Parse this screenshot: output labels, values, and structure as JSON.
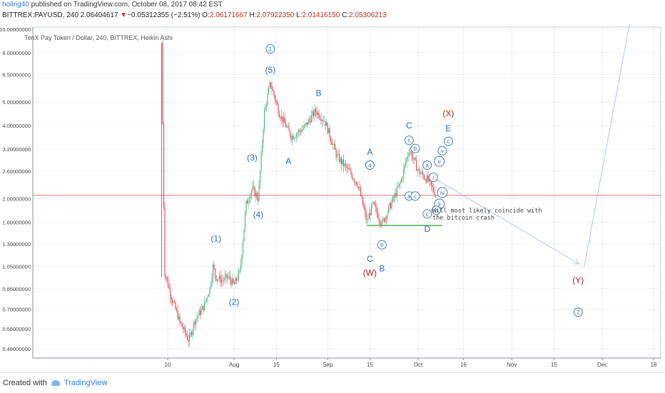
{
  "header": {
    "user": "holing40",
    "published_text": "published on TradingView.com, October 08, 2017 08:42 EST"
  },
  "ohlc": {
    "symbol": "BITTREX:PAYUSD, 240",
    "price": "2.06404617",
    "arrow": "▼",
    "change": "−0.05312355 (−2.51%)",
    "o_label": "O:",
    "o": "2.06171667",
    "h_label": "H:",
    "h": "2.07922350",
    "l_label": "L:",
    "l": "2.01416150",
    "c_label": "C:",
    "c": "2.05306213"
  },
  "legend": "TenX Pay Token / Dollar, 240, BITTREX, Heikin Ashi",
  "note": [
    "Will most likely coincide with",
    "the bitcoin crash"
  ],
  "footer": {
    "created_with": "Created with",
    "brand": "TradingView"
  },
  "colors": {
    "up": "#53b987",
    "down": "#eb4d5c",
    "wave_blue": "#2f6bb4",
    "wave_red": "#b71c1c",
    "support": "#4caf50",
    "hline": "#e57373",
    "arrow": "#b7c6e6"
  },
  "chart_data": {
    "type": "candlestick",
    "chart_style": "Heikin Ashi",
    "scale": "log",
    "y_ticks": [
      "10.00000000",
      "8.00000000",
      "6.50000000",
      "5.00000000",
      "4.00000000",
      "3.20000000",
      "2.60000000",
      "2.00000000",
      "1.60000000",
      "1.30000000",
      "1.05000000",
      "0.85000000",
      "0.70000000",
      "0.58000000",
      "0.48000000"
    ],
    "x_ticks": [
      "10",
      "Aug",
      "15",
      "Sep",
      "15",
      "Oct",
      "16",
      "Nov",
      "15",
      "Dec",
      "18"
    ],
    "x_tick_dates": [
      "2017-07-10",
      "2017-08-01",
      "2017-08-15",
      "2017-09-01",
      "2017-09-15",
      "2017-10-01",
      "2017-10-16",
      "2017-11-01",
      "2017-11-15",
      "2017-12-01",
      "2017-12-18"
    ],
    "current_price": 2.064,
    "support_level": 1.55,
    "path_points": [
      [
        "2017-07-08",
        0.95
      ],
      [
        "2017-07-08",
        8.8
      ],
      [
        "2017-07-09",
        1.0
      ],
      [
        "2017-07-11",
        0.8
      ],
      [
        "2017-07-14",
        0.62
      ],
      [
        "2017-07-17",
        0.52
      ],
      [
        "2017-07-19",
        0.63
      ],
      [
        "2017-07-22",
        0.72
      ],
      [
        "2017-07-24",
        0.86
      ],
      [
        "2017-07-25",
        1.05
      ],
      [
        "2017-07-26",
        0.95
      ],
      [
        "2017-07-28",
        0.92
      ],
      [
        "2017-07-30",
        0.95
      ],
      [
        "2017-08-01",
        0.88
      ],
      [
        "2017-08-03",
        1.0
      ],
      [
        "2017-08-05",
        1.9
      ],
      [
        "2017-08-07",
        2.2
      ],
      [
        "2017-08-09",
        2.0
      ],
      [
        "2017-08-11",
        4.5
      ],
      [
        "2017-08-13",
        6.0
      ],
      [
        "2017-08-16",
        4.5
      ],
      [
        "2017-08-20",
        3.6
      ],
      [
        "2017-08-24",
        3.9
      ],
      [
        "2017-08-28",
        4.6
      ],
      [
        "2017-08-31",
        4.2
      ],
      [
        "2017-09-04",
        3.0
      ],
      [
        "2017-09-08",
        2.6
      ],
      [
        "2017-09-11",
        2.3
      ],
      [
        "2017-09-14",
        1.6
      ],
      [
        "2017-09-16",
        1.9
      ],
      [
        "2017-09-19",
        1.58
      ],
      [
        "2017-09-22",
        1.9
      ],
      [
        "2017-09-25",
        2.3
      ],
      [
        "2017-09-28",
        3.2
      ],
      [
        "2017-10-01",
        2.6
      ],
      [
        "2017-10-04",
        2.4
      ],
      [
        "2017-10-07",
        2.06
      ]
    ],
    "wave_labels": [
      {
        "text": "1",
        "date": "2017-08-13",
        "price": 8.3,
        "circle": true,
        "color": "blue"
      },
      {
        "text": "(5)",
        "date": "2017-08-13",
        "price": 6.8,
        "color": "blue"
      },
      {
        "text": "(3)",
        "date": "2017-08-07",
        "price": 2.95,
        "color": "blue"
      },
      {
        "text": "(4)",
        "date": "2017-08-09",
        "price": 1.72,
        "color": "blue"
      },
      {
        "text": "(1)",
        "date": "2017-07-26",
        "price": 1.37,
        "color": "blue"
      },
      {
        "text": "(2)",
        "date": "2017-08-01",
        "price": 0.75,
        "color": "blue"
      },
      {
        "text": "B",
        "date": "2017-08-29",
        "price": 5.45,
        "color": "blue"
      },
      {
        "text": "A",
        "date": "2017-08-19",
        "price": 2.85,
        "color": "blue"
      },
      {
        "text": "A",
        "date": "2017-09-15",
        "price": 3.12,
        "color": "blue"
      },
      {
        "text": "a",
        "date": "2017-09-15",
        "price": 2.75,
        "circle": true,
        "color": "blue"
      },
      {
        "text": "C",
        "date": "2017-09-15",
        "price": 1.13,
        "color": "blue"
      },
      {
        "text": "(W)",
        "date": "2017-09-15",
        "price": 0.99,
        "color": "red"
      },
      {
        "text": "b",
        "date": "2017-09-19",
        "price": 1.29,
        "circle": true,
        "color": "blue"
      },
      {
        "text": "B",
        "date": "2017-09-19",
        "price": 1.03,
        "color": "blue"
      },
      {
        "text": "C",
        "date": "2017-09-28",
        "price": 4.0,
        "color": "blue"
      },
      {
        "text": "c",
        "date": "2017-09-28",
        "price": 3.48,
        "circle": true,
        "color": "blue"
      },
      {
        "text": "b",
        "date": "2017-09-30",
        "price": 3.22,
        "circle": true,
        "color": "blue"
      },
      {
        "text": "a",
        "date": "2017-09-28",
        "price": 2.05,
        "circle": true,
        "color": "blue"
      },
      {
        "text": "c",
        "date": "2017-09-30",
        "price": 2.05,
        "circle": true,
        "color": "blue"
      },
      {
        "text": "a",
        "date": "2017-10-04",
        "price": 2.75,
        "circle": true,
        "color": "blue"
      },
      {
        "text": "i",
        "date": "2017-10-06",
        "price": 2.45,
        "circle": true,
        "color": "blue"
      },
      {
        "text": "iii",
        "date": "2017-10-08",
        "price": 2.85,
        "circle": true,
        "color": "blue"
      },
      {
        "text": "v",
        "date": "2017-10-09",
        "price": 3.15,
        "circle": true,
        "color": "blue"
      },
      {
        "text": "iv",
        "date": "2017-10-09",
        "price": 2.12,
        "circle": true,
        "color": "blue"
      },
      {
        "text": "ii",
        "date": "2017-10-08",
        "price": 1.9,
        "circle": true,
        "color": "blue"
      },
      {
        "text": "b",
        "date": "2017-10-07",
        "price": 1.79,
        "circle": true,
        "color": "blue"
      },
      {
        "text": "c",
        "date": "2017-10-04",
        "price": 1.73,
        "circle": true,
        "color": "blue"
      },
      {
        "text": "D",
        "date": "2017-10-04",
        "price": 1.5,
        "color": "blue"
      },
      {
        "text": "(X)",
        "date": "2017-10-11",
        "price": 4.5,
        "color": "red"
      },
      {
        "text": "E",
        "date": "2017-10-11",
        "price": 3.9,
        "color": "blue"
      },
      {
        "text": "c",
        "date": "2017-10-11",
        "price": 3.45,
        "circle": true,
        "color": "blue"
      },
      {
        "text": "(Y)",
        "date": "2017-11-23",
        "price": 0.92,
        "color": "red"
      },
      {
        "text": "2",
        "date": "2017-11-23",
        "price": 0.68,
        "circle": true,
        "color": "blue"
      }
    ],
    "projection": [
      [
        "2017-10-07",
        2.4
      ],
      [
        "2017-11-23",
        1.08
      ]
    ],
    "projection_up": [
      [
        "2017-11-25",
        1.05
      ],
      [
        "2017-12-10",
        10.5
      ]
    ]
  }
}
